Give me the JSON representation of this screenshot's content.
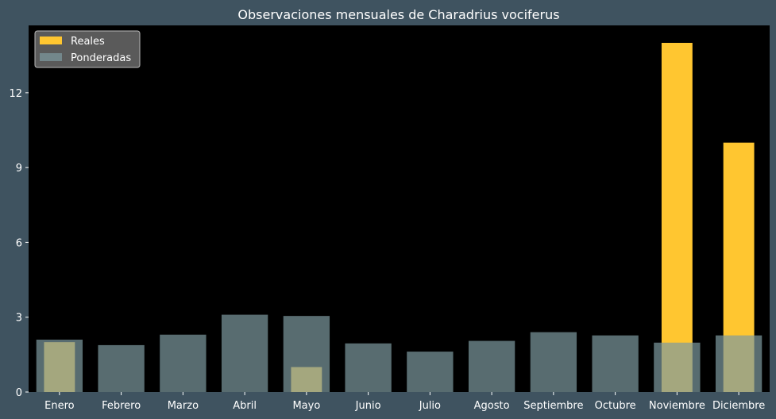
{
  "chart_data": {
    "type": "bar",
    "title": "Observaciones mensuales de Charadrius vociferus",
    "xlabel": "",
    "ylabel": "",
    "categories": [
      "Enero",
      "Febrero",
      "Marzo",
      "Abril",
      "Mayo",
      "Junio",
      "Julio",
      "Agosto",
      "Septiembre",
      "Octubre",
      "Noviembre",
      "Diciembre"
    ],
    "series": [
      {
        "name": "Reales",
        "color": "#ffc630",
        "values": [
          2,
          0,
          0,
          0,
          1,
          0,
          0,
          0,
          0,
          0,
          14,
          10
        ]
      },
      {
        "name": "Ponderadas",
        "color": "#7d9aa0",
        "opacity": 0.7,
        "values": [
          2.1,
          1.88,
          2.3,
          3.1,
          3.05,
          1.95,
          1.62,
          2.05,
          2.4,
          2.27,
          1.98,
          2.27
        ]
      }
    ],
    "ylim": [
      0,
      14.7
    ],
    "yticks": [
      0,
      3,
      6,
      9,
      12
    ],
    "grid": false,
    "legend_position": "top-left",
    "background": "#3f5360",
    "plot_background": "#000000"
  }
}
